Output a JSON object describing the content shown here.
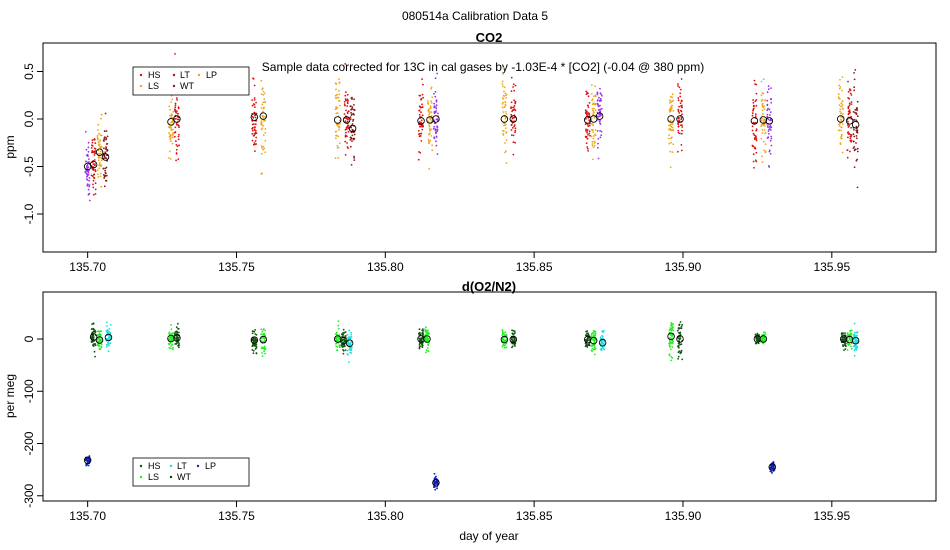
{
  "suptitle": "080514a   Calibration Data 5",
  "xlabel": "day of year",
  "chart_data": [
    {
      "type": "scatter",
      "title": "CO2",
      "ylabel": "ppm",
      "annotation": "Sample data corrected for 13C in cal gases by -1.03E-4 * [CO2] (-0.04 @ 380 ppm)",
      "xlim": [
        135.685,
        135.985
      ],
      "ylim": [
        -1.4,
        0.8
      ],
      "xticks": [
        135.7,
        135.75,
        135.8,
        135.85,
        135.9,
        135.95
      ],
      "xtick_labels": [
        "135.70",
        "135.75",
        "135.80",
        "135.85",
        "135.90",
        "135.95"
      ],
      "yticks": [
        -1.0,
        -0.5,
        0.0,
        0.5
      ],
      "ytick_labels": [
        "-1.0",
        "-0.5",
        "0.0",
        "0.5"
      ],
      "legend": {
        "placement": "top-left",
        "entries": [
          {
            "label": "HS",
            "color": "#dd1111"
          },
          {
            "label": "LT",
            "color": "#aa1111"
          },
          {
            "label": "LP",
            "color": "#f0a818"
          },
          {
            "label": "LS",
            "color": "#f0a818"
          },
          {
            "label": "WT",
            "color": "#881a1a"
          }
        ]
      },
      "groups": [
        {
          "x": 135.7,
          "mean": -0.5,
          "sd": 0.18,
          "color": "#9933ee"
        },
        {
          "x": 135.702,
          "mean": -0.48,
          "sd": 0.18,
          "color": "#dd1111"
        },
        {
          "x": 135.704,
          "mean": -0.35,
          "sd": 0.15,
          "color": "#f0a818"
        },
        {
          "x": 135.706,
          "mean": -0.4,
          "sd": 0.18,
          "color": "#881a1a"
        },
        {
          "x": 135.728,
          "mean": -0.03,
          "sd": 0.18,
          "color": "#f0a818"
        },
        {
          "x": 135.73,
          "mean": 0.0,
          "sd": 0.18,
          "color": "#dd1111"
        },
        {
          "x": 135.756,
          "mean": 0.02,
          "sd": 0.2,
          "color": "#dd1111"
        },
        {
          "x": 135.759,
          "mean": 0.03,
          "sd": 0.18,
          "color": "#f0a818"
        },
        {
          "x": 135.784,
          "mean": -0.01,
          "sd": 0.22,
          "color": "#f0a818"
        },
        {
          "x": 135.787,
          "mean": -0.01,
          "sd": 0.18,
          "color": "#dd1111"
        },
        {
          "x": 135.789,
          "mean": -0.1,
          "sd": 0.2,
          "color": "#881a1a"
        },
        {
          "x": 135.812,
          "mean": -0.02,
          "sd": 0.18,
          "color": "#dd1111"
        },
        {
          "x": 135.815,
          "mean": -0.01,
          "sd": 0.18,
          "color": "#f0a818"
        },
        {
          "x": 135.817,
          "mean": 0.0,
          "sd": 0.18,
          "color": "#9933ee"
        },
        {
          "x": 135.84,
          "mean": 0.0,
          "sd": 0.2,
          "color": "#f0a818"
        },
        {
          "x": 135.843,
          "mean": 0.0,
          "sd": 0.18,
          "color": "#dd1111"
        },
        {
          "x": 135.868,
          "mean": -0.01,
          "sd": 0.18,
          "color": "#dd1111"
        },
        {
          "x": 135.87,
          "mean": 0.0,
          "sd": 0.2,
          "color": "#f0a818"
        },
        {
          "x": 135.872,
          "mean": 0.03,
          "sd": 0.18,
          "color": "#9933ee"
        },
        {
          "x": 135.896,
          "mean": 0.0,
          "sd": 0.18,
          "color": "#f0a818"
        },
        {
          "x": 135.899,
          "mean": 0.0,
          "sd": 0.18,
          "color": "#dd1111"
        },
        {
          "x": 135.924,
          "mean": -0.02,
          "sd": 0.22,
          "color": "#dd1111"
        },
        {
          "x": 135.927,
          "mean": -0.01,
          "sd": 0.2,
          "color": "#f0a818"
        },
        {
          "x": 135.929,
          "mean": -0.02,
          "sd": 0.2,
          "color": "#9933ee"
        },
        {
          "x": 135.953,
          "mean": 0.0,
          "sd": 0.2,
          "color": "#f0a818"
        },
        {
          "x": 135.956,
          "mean": -0.02,
          "sd": 0.2,
          "color": "#dd1111"
        },
        {
          "x": 135.958,
          "mean": -0.06,
          "sd": 0.22,
          "color": "#881a1a"
        }
      ]
    },
    {
      "type": "scatter",
      "title": "d(O2/N2)",
      "ylabel": "per meg",
      "xlim": [
        135.685,
        135.985
      ],
      "ylim": [
        -310,
        90
      ],
      "xticks": [
        135.7,
        135.75,
        135.8,
        135.85,
        135.9,
        135.95
      ],
      "xtick_labels": [
        "135.70",
        "135.75",
        "135.80",
        "135.85",
        "135.90",
        "135.95"
      ],
      "yticks": [
        -300,
        -200,
        -100,
        0
      ],
      "ytick_labels": [
        "-300",
        "-200",
        "-100",
        "0"
      ],
      "legend": {
        "placement": "bottom-left",
        "entries": [
          {
            "label": "HS",
            "color": "#115511"
          },
          {
            "label": "LT",
            "color": "#22dddd"
          },
          {
            "label": "LP",
            "color": "#1122bb"
          },
          {
            "label": "LS",
            "color": "#22ee22"
          },
          {
            "label": "WT",
            "color": "#0a3a0a"
          }
        ]
      },
      "groups": [
        {
          "x": 135.7,
          "mean": -232,
          "sd": 5,
          "color": "#1122bb"
        },
        {
          "x": 135.702,
          "mean": 4,
          "sd": 10,
          "color": "#115511"
        },
        {
          "x": 135.704,
          "mean": -2,
          "sd": 10,
          "color": "#22ee22"
        },
        {
          "x": 135.707,
          "mean": 3,
          "sd": 12,
          "color": "#22dddd"
        },
        {
          "x": 135.728,
          "mean": 1,
          "sd": 8,
          "color": "#22ee22"
        },
        {
          "x": 135.73,
          "mean": 2,
          "sd": 10,
          "color": "#115511"
        },
        {
          "x": 135.756,
          "mean": -2,
          "sd": 10,
          "color": "#115511"
        },
        {
          "x": 135.759,
          "mean": -1,
          "sd": 12,
          "color": "#22ee22"
        },
        {
          "x": 135.784,
          "mean": 0,
          "sd": 10,
          "color": "#22ee22"
        },
        {
          "x": 135.786,
          "mean": -3,
          "sd": 8,
          "color": "#115511"
        },
        {
          "x": 135.788,
          "mean": -8,
          "sd": 12,
          "color": "#22dddd"
        },
        {
          "x": 135.812,
          "mean": 0,
          "sd": 10,
          "color": "#115511"
        },
        {
          "x": 135.814,
          "mean": 0,
          "sd": 10,
          "color": "#22ee22"
        },
        {
          "x": 135.817,
          "mean": -275,
          "sd": 6,
          "color": "#1122bb"
        },
        {
          "x": 135.84,
          "mean": -1,
          "sd": 8,
          "color": "#22ee22"
        },
        {
          "x": 135.843,
          "mean": -1,
          "sd": 8,
          "color": "#115511"
        },
        {
          "x": 135.868,
          "mean": -1,
          "sd": 8,
          "color": "#115511"
        },
        {
          "x": 135.87,
          "mean": -3,
          "sd": 10,
          "color": "#22ee22"
        },
        {
          "x": 135.873,
          "mean": -7,
          "sd": 8,
          "color": "#22dddd"
        },
        {
          "x": 135.896,
          "mean": 5,
          "sd": 18,
          "color": "#22ee22"
        },
        {
          "x": 135.899,
          "mean": 0,
          "sd": 18,
          "color": "#115511"
        },
        {
          "x": 135.925,
          "mean": 0,
          "sd": 5,
          "color": "#115511"
        },
        {
          "x": 135.927,
          "mean": 0,
          "sd": 5,
          "color": "#22ee22"
        },
        {
          "x": 135.93,
          "mean": -245,
          "sd": 6,
          "color": "#1122bb"
        },
        {
          "x": 135.954,
          "mean": 0,
          "sd": 8,
          "color": "#115511"
        },
        {
          "x": 135.956,
          "mean": -1,
          "sd": 10,
          "color": "#22ee22"
        },
        {
          "x": 135.958,
          "mean": -3,
          "sd": 12,
          "color": "#22dddd"
        }
      ]
    }
  ]
}
